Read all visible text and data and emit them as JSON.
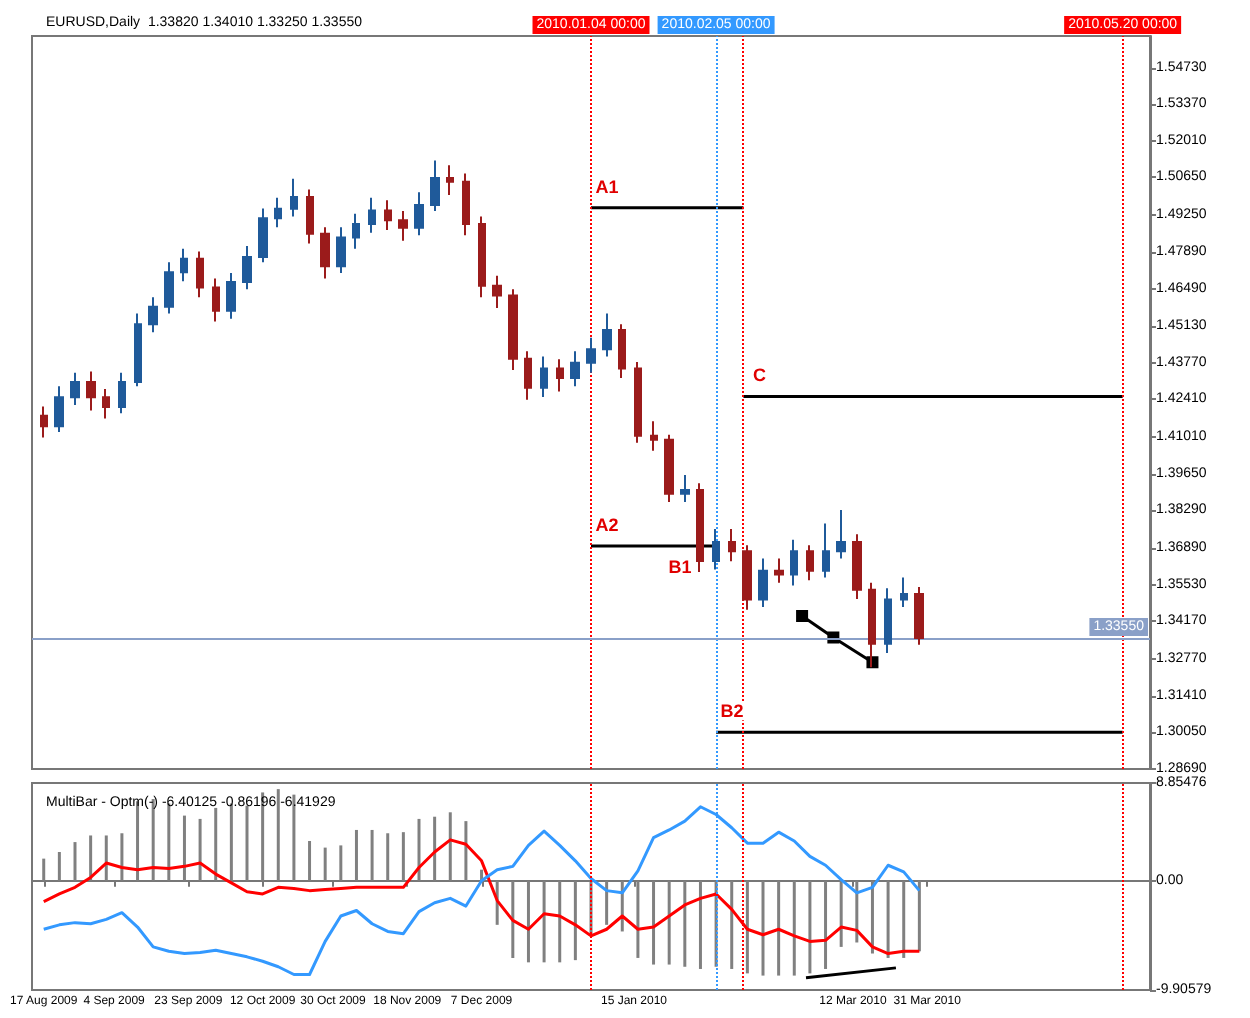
{
  "chart_data": [
    {
      "type": "candlestick",
      "title": "EURUSD,Daily  1.33820 1.34010 1.33250 1.33550",
      "x": [
        "2009-08-17",
        "2009-08-21",
        "2009-08-25",
        "2009-08-29",
        "2009-09-02",
        "2009-09-06",
        "2009-09-10",
        "2009-09-14",
        "2009-09-18",
        "2009-09-22",
        "2009-09-26",
        "2009-09-30",
        "2009-10-04",
        "2009-10-08",
        "2009-10-12",
        "2009-10-16",
        "2009-10-20",
        "2009-10-24",
        "2009-10-28",
        "2009-11-01",
        "2009-11-05",
        "2009-11-09",
        "2009-11-13",
        "2009-11-17",
        "2009-11-21",
        "2009-11-25",
        "2009-11-29",
        "2009-12-03",
        "2009-12-07",
        "2009-12-11",
        "2009-12-15",
        "2009-12-19",
        "2009-12-23",
        "2009-12-27",
        "2009-12-31",
        "2010-01-04",
        "2010-01-08",
        "2010-01-12",
        "2010-01-16",
        "2010-01-20",
        "2010-01-24",
        "2010-01-28",
        "2010-02-01",
        "2010-02-05",
        "2010-02-09",
        "2010-02-13",
        "2010-02-17",
        "2010-02-21",
        "2010-02-25",
        "2010-03-01",
        "2010-03-05",
        "2010-03-09",
        "2010-03-13",
        "2010-03-17",
        "2010-03-21",
        "2010-03-25",
        "2010-03-29"
      ],
      "ohlc": [
        [
          1.418,
          1.4215,
          1.41,
          1.4141
        ],
        [
          1.4141,
          1.429,
          1.412,
          1.4249
        ],
        [
          1.4249,
          1.434,
          1.422,
          1.4306
        ],
        [
          1.4306,
          1.4345,
          1.42,
          1.4249
        ],
        [
          1.4249,
          1.428,
          1.417,
          1.4213
        ],
        [
          1.4213,
          1.434,
          1.419,
          1.4306
        ],
        [
          1.4306,
          1.456,
          1.429,
          1.452
        ],
        [
          1.452,
          1.462,
          1.449,
          1.4585
        ],
        [
          1.4585,
          1.475,
          1.456,
          1.4713
        ],
        [
          1.4713,
          1.48,
          1.468,
          1.4763
        ],
        [
          1.4763,
          1.479,
          1.462,
          1.4656
        ],
        [
          1.4656,
          1.469,
          1.453,
          1.457
        ],
        [
          1.457,
          1.471,
          1.454,
          1.4677
        ],
        [
          1.4677,
          1.481,
          1.465,
          1.477
        ],
        [
          1.477,
          1.495,
          1.475,
          1.4913
        ],
        [
          1.4913,
          1.499,
          1.488,
          1.4949
        ],
        [
          1.4949,
          1.506,
          1.492,
          1.4992
        ],
        [
          1.4992,
          1.502,
          1.482,
          1.4856
        ],
        [
          1.4856,
          1.488,
          1.469,
          1.4735
        ],
        [
          1.4735,
          1.488,
          1.471,
          1.4842
        ],
        [
          1.4842,
          1.493,
          1.48,
          1.4892
        ],
        [
          1.4892,
          1.499,
          1.486,
          1.4942
        ],
        [
          1.4942,
          1.498,
          1.487,
          1.4906
        ],
        [
          1.4906,
          1.494,
          1.483,
          1.4878
        ],
        [
          1.4878,
          1.501,
          1.485,
          1.4963
        ],
        [
          1.4963,
          1.5128,
          1.494,
          1.5063
        ],
        [
          1.5063,
          1.511,
          1.5,
          1.5049
        ],
        [
          1.5049,
          1.508,
          1.485,
          1.4892
        ],
        [
          1.4892,
          1.492,
          1.462,
          1.4663
        ],
        [
          1.4663,
          1.47,
          1.458,
          1.4627
        ],
        [
          1.4627,
          1.465,
          1.435,
          1.4392
        ],
        [
          1.4392,
          1.442,
          1.424,
          1.4284
        ],
        [
          1.4284,
          1.44,
          1.425,
          1.4356
        ],
        [
          1.4356,
          1.439,
          1.427,
          1.432
        ],
        [
          1.432,
          1.442,
          1.429,
          1.4377
        ],
        [
          1.4377,
          1.447,
          1.434,
          1.4427
        ],
        [
          1.4427,
          1.456,
          1.44,
          1.4499
        ],
        [
          1.4499,
          1.452,
          1.432,
          1.4356
        ],
        [
          1.4356,
          1.438,
          1.408,
          1.4106
        ],
        [
          1.4106,
          1.416,
          1.405,
          1.4091
        ],
        [
          1.4091,
          1.411,
          1.386,
          1.3891
        ],
        [
          1.3891,
          1.396,
          1.386,
          1.3905
        ],
        [
          1.3905,
          1.393,
          1.36,
          1.3641
        ],
        [
          1.3641,
          1.376,
          1.361,
          1.3712
        ],
        [
          1.3712,
          1.376,
          1.364,
          1.3677
        ],
        [
          1.3677,
          1.37,
          1.346,
          1.3498
        ],
        [
          1.3498,
          1.365,
          1.347,
          1.3605
        ],
        [
          1.3605,
          1.365,
          1.356,
          1.3591
        ],
        [
          1.3591,
          1.372,
          1.355,
          1.3677
        ],
        [
          1.3677,
          1.37,
          1.357,
          1.3605
        ],
        [
          1.3605,
          1.378,
          1.358,
          1.3677
        ],
        [
          1.3677,
          1.383,
          1.365,
          1.3712
        ],
        [
          1.3712,
          1.374,
          1.35,
          1.3534
        ],
        [
          1.3534,
          1.356,
          1.3247,
          1.3334
        ],
        [
          1.3334,
          1.354,
          1.33,
          1.3498
        ],
        [
          1.3498,
          1.358,
          1.347,
          1.3519
        ],
        [
          1.3519,
          1.3545,
          1.333,
          1.3355
        ]
      ],
      "colors": [
        "#9b1b1b",
        "#1f5a9a",
        "#1f5a9a",
        "#9b1b1b",
        "#9b1b1b",
        "#1f5a9a",
        "#1f5a9a",
        "#1f5a9a",
        "#1f5a9a",
        "#1f5a9a",
        "#9b1b1b",
        "#9b1b1b",
        "#1f5a9a",
        "#1f5a9a",
        "#1f5a9a",
        "#1f5a9a",
        "#1f5a9a",
        "#9b1b1b",
        "#9b1b1b",
        "#1f5a9a",
        "#1f5a9a",
        "#1f5a9a",
        "#9b1b1b",
        "#9b1b1b",
        "#1f5a9a",
        "#1f5a9a",
        "#9b1b1b",
        "#9b1b1b",
        "#9b1b1b",
        "#9b1b1b",
        "#9b1b1b",
        "#9b1b1b",
        "#1f5a9a",
        "#9b1b1b",
        "#1f5a9a",
        "#1f5a9a",
        "#1f5a9a",
        "#9b1b1b",
        "#9b1b1b",
        "#9b1b1b",
        "#9b1b1b",
        "#1f5a9a",
        "#9b1b1b",
        "#1f5a9a",
        "#9b1b1b",
        "#9b1b1b",
        "#1f5a9a",
        "#9b1b1b",
        "#1f5a9a",
        "#9b1b1b",
        "#1f5a9a",
        "#1f5a9a",
        "#9b1b1b",
        "#9b1b1b",
        "#1f5a9a",
        "#1f5a9a",
        "#9b1b1b"
      ],
      "series": [
        {
          "type": "line",
          "color": "#000000",
          "marker": "none",
          "x": [
            "2010-01-04",
            "2010-02-12"
          ],
          "values": [
            1.4952,
            1.4952
          ]
        },
        {
          "type": "line",
          "color": "#000000",
          "marker": "none",
          "x": [
            "2010-01-04",
            "2010-02-05"
          ],
          "values": [
            1.3697,
            1.3697
          ]
        },
        {
          "type": "line",
          "color": "#000000",
          "marker": "none",
          "x": [
            "2010-02-12",
            "2010-05-20"
          ],
          "values": [
            1.4252,
            1.4252
          ]
        },
        {
          "type": "line",
          "color": "#000000",
          "marker": "none",
          "x": [
            "2010-02-05",
            "2010-05-20"
          ],
          "values": [
            1.3005,
            1.3005
          ]
        },
        {
          "type": "line",
          "color": "#000000",
          "marker": "square",
          "x": [
            "2010-02-27",
            "2010-03-07",
            "2010-03-17"
          ],
          "values": [
            1.3437,
            1.3357,
            1.3265
          ]
        }
      ],
      "annotations": [
        {
          "text": "A1",
          "x": "2010-01-04",
          "y": 1.4952
        },
        {
          "text": "A2",
          "x": "2010-01-04",
          "y": 1.3697
        },
        {
          "text": "B1",
          "x": "2010-02-05",
          "y": 1.3697
        },
        {
          "text": "C",
          "x": "2010-02-12",
          "y": 1.4252
        },
        {
          "text": "B2",
          "x": "2010-02-05",
          "y": 1.3005
        }
      ],
      "xlim": [
        "2009-08-14",
        "2010-05-27"
      ],
      "ylim": [
        1.2869,
        1.559
      ],
      "yticks": [
        {
          "value": 1.2869,
          "label": "1.28690"
        },
        {
          "value": 1.3005,
          "label": "1.30050"
        },
        {
          "value": 1.3141,
          "label": "1.31410"
        },
        {
          "value": 1.3277,
          "label": "1.32770"
        },
        {
          "value": 1.3417,
          "label": "1.34170"
        },
        {
          "value": 1.3553,
          "label": "1.35530"
        },
        {
          "value": 1.3689,
          "label": "1.36890"
        },
        {
          "value": 1.3829,
          "label": "1.38290"
        },
        {
          "value": 1.3965,
          "label": "1.39650"
        },
        {
          "value": 1.4101,
          "label": "1.41010"
        },
        {
          "value": 1.4241,
          "label": "1.42410"
        },
        {
          "value": 1.4377,
          "label": "1.43770"
        },
        {
          "value": 1.4513,
          "label": "1.45130"
        },
        {
          "value": 1.4649,
          "label": "1.46490"
        },
        {
          "value": 1.4789,
          "label": "1.47890"
        },
        {
          "value": 1.4925,
          "label": "1.49250"
        },
        {
          "value": 1.5065,
          "label": "1.50650"
        },
        {
          "value": 1.5201,
          "label": "1.52010"
        },
        {
          "value": 1.5337,
          "label": "1.53370"
        },
        {
          "value": 1.5473,
          "label": "1.54730"
        }
      ],
      "tick_labels": "y",
      "ref_lines": [
        {
          "axis": "x",
          "value": "2010-01-04",
          "label": "2010.01.04 00:00",
          "color": "#ff0000",
          "line_style": "dotted"
        },
        {
          "axis": "x",
          "value": "2010-02-05",
          "label": "2010.02.05 00:00",
          "color": "#3399ff",
          "line_style": "dotted"
        },
        {
          "axis": "x",
          "value": "2010-02-12",
          "label": null,
          "color": "#ff0000",
          "line_style": "dotted"
        },
        {
          "axis": "x",
          "value": "2010-05-20",
          "label": "2010.05.20 00:00",
          "color": "#ff0000",
          "line_style": "dotted"
        },
        {
          "axis": "y",
          "value": 1.3355,
          "label": "1.33550",
          "color": "#8aa0c8",
          "line_style": "solid"
        }
      ]
    },
    {
      "type": "bar",
      "title": "MultiBar - Optm(-) -6.40125 -0.86196 -6.41929",
      "x": [
        "2009-08-17",
        "2009-08-21",
        "2009-08-25",
        "2009-08-29",
        "2009-09-02",
        "2009-09-06",
        "2009-09-10",
        "2009-09-14",
        "2009-09-18",
        "2009-09-22",
        "2009-09-26",
        "2009-09-30",
        "2009-10-04",
        "2009-10-08",
        "2009-10-12",
        "2009-10-16",
        "2009-10-20",
        "2009-10-24",
        "2009-10-28",
        "2009-11-01",
        "2009-11-05",
        "2009-11-09",
        "2009-11-13",
        "2009-11-17",
        "2009-11-21",
        "2009-11-25",
        "2009-11-29",
        "2009-12-03",
        "2009-12-07",
        "2009-12-11",
        "2009-12-15",
        "2009-12-19",
        "2009-12-23",
        "2009-12-27",
        "2009-12-31",
        "2010-01-04",
        "2010-01-08",
        "2010-01-12",
        "2010-01-16",
        "2010-01-20",
        "2010-01-24",
        "2010-01-28",
        "2010-02-01",
        "2010-02-05",
        "2010-02-09",
        "2010-02-13",
        "2010-02-17",
        "2010-02-21",
        "2010-02-25",
        "2010-03-01",
        "2010-03-05",
        "2010-03-09",
        "2010-03-13",
        "2010-03-17",
        "2010-03-21",
        "2010-03-25",
        "2010-03-29"
      ],
      "series": [
        {
          "type": "bar",
          "color": "#808080",
          "values": [
            2.0,
            2.6,
            3.5,
            4.1,
            4.1,
            4.3,
            7.2,
            7.4,
            7.0,
            5.9,
            5.6,
            6.6,
            7.0,
            6.8,
            8.0,
            8.3,
            7.8,
            3.6,
            3.0,
            3.2,
            4.6,
            4.6,
            4.3,
            4.4,
            5.6,
            5.8,
            6.2,
            5.4,
            1.0,
            -4.0,
            -7.0,
            -7.4,
            -7.4,
            -7.4,
            -7.2,
            -5.0,
            -4.0,
            -4.6,
            -7.0,
            -7.6,
            -7.6,
            -7.8,
            -8.0,
            -7.8,
            -8.0,
            -8.4,
            -8.6,
            -8.6,
            -8.6,
            -8.4,
            -8.0,
            -6.0,
            -5.6,
            -6.6,
            -7.0,
            -7.0,
            -6.4
          ]
        },
        {
          "type": "line",
          "color": "#ff0000",
          "marker": "none",
          "values": [
            -1.9,
            -1.2,
            -0.6,
            0.3,
            1.6,
            1.2,
            1.0,
            1.2,
            1.1,
            1.3,
            1.6,
            0.6,
            -0.2,
            -1.0,
            -1.2,
            -0.6,
            -0.7,
            -0.9,
            -0.8,
            -0.7,
            -0.6,
            -0.6,
            -0.6,
            -0.6,
            1.2,
            2.6,
            3.7,
            3.3,
            1.8,
            -1.8,
            -3.6,
            -4.4,
            -3.0,
            -3.2,
            -4.0,
            -5.0,
            -4.4,
            -3.2,
            -4.4,
            -4.2,
            -3.2,
            -2.2,
            -1.6,
            -1.2,
            -2.6,
            -4.4,
            -4.9,
            -4.4,
            -5.0,
            -5.5,
            -5.4,
            -4.2,
            -4.5,
            -6.0,
            -6.6,
            -6.4,
            -6.4
          ]
        },
        {
          "type": "line",
          "color": "#3399ff",
          "marker": "none",
          "values": [
            -4.4,
            -4.0,
            -3.8,
            -3.9,
            -3.5,
            -2.9,
            -4.2,
            -6.0,
            -6.4,
            -6.6,
            -6.5,
            -6.3,
            -6.6,
            -6.9,
            -7.3,
            -7.8,
            -8.5,
            -8.5,
            -5.5,
            -3.2,
            -2.7,
            -3.9,
            -4.6,
            -4.8,
            -2.8,
            -2.0,
            -1.6,
            -2.3,
            0.0,
            1.0,
            1.3,
            3.2,
            4.5,
            3.2,
            1.8,
            0.2,
            -0.9,
            -1.1,
            0.9,
            3.9,
            4.6,
            5.4,
            6.7,
            6.0,
            4.8,
            3.4,
            3.4,
            4.4,
            3.6,
            2.2,
            1.4,
            0.1,
            -1.1,
            -0.6,
            1.4,
            0.8,
            -0.9
          ]
        },
        {
          "type": "line",
          "color": "#000000",
          "marker": "none",
          "x": [
            "2010-02-28",
            "2010-03-23"
          ],
          "values": [
            -8.8,
            -7.9
          ]
        }
      ],
      "xlim": [
        "2009-08-14",
        "2010-05-27"
      ],
      "ylim": [
        -9.90579,
        8.85476
      ],
      "yticks": [
        {
          "value": -9.90579,
          "label": "-9.90579"
        },
        {
          "value": 0,
          "label": "0.00"
        },
        {
          "value": 8.85476,
          "label": "8.85476"
        }
      ],
      "xticks": [
        {
          "value": "2009-08-17",
          "label": "17 Aug 2009"
        },
        {
          "value": "2009-09-04",
          "label": "4 Sep 2009"
        },
        {
          "value": "2009-09-23",
          "label": "23 Sep 2009"
        },
        {
          "value": "2009-10-12",
          "label": "12 Oct 2009"
        },
        {
          "value": "2009-10-30",
          "label": "30 Oct 2009"
        },
        {
          "value": "2009-11-18",
          "label": "18 Nov 2009"
        },
        {
          "value": "2009-12-07",
          "label": "7 Dec 2009"
        },
        {
          "value": "2010-01-15",
          "label": "15 Jan 2010"
        },
        {
          "value": "2010-03-12",
          "label": "12 Mar 2010"
        },
        {
          "value": "2010-03-31",
          "label": "31 Mar 2010"
        }
      ],
      "ref_lines": [
        {
          "axis": "x",
          "value": "2010-01-04",
          "color": "#ff0000",
          "line_style": "dotted"
        },
        {
          "axis": "x",
          "value": "2010-02-05",
          "color": "#3399ff",
          "line_style": "dotted"
        },
        {
          "axis": "x",
          "value": "2010-02-12",
          "color": "#ff0000",
          "line_style": "dotted"
        },
        {
          "axis": "x",
          "value": "2010-05-20",
          "color": "#ff0000",
          "line_style": "dotted"
        }
      ]
    }
  ]
}
